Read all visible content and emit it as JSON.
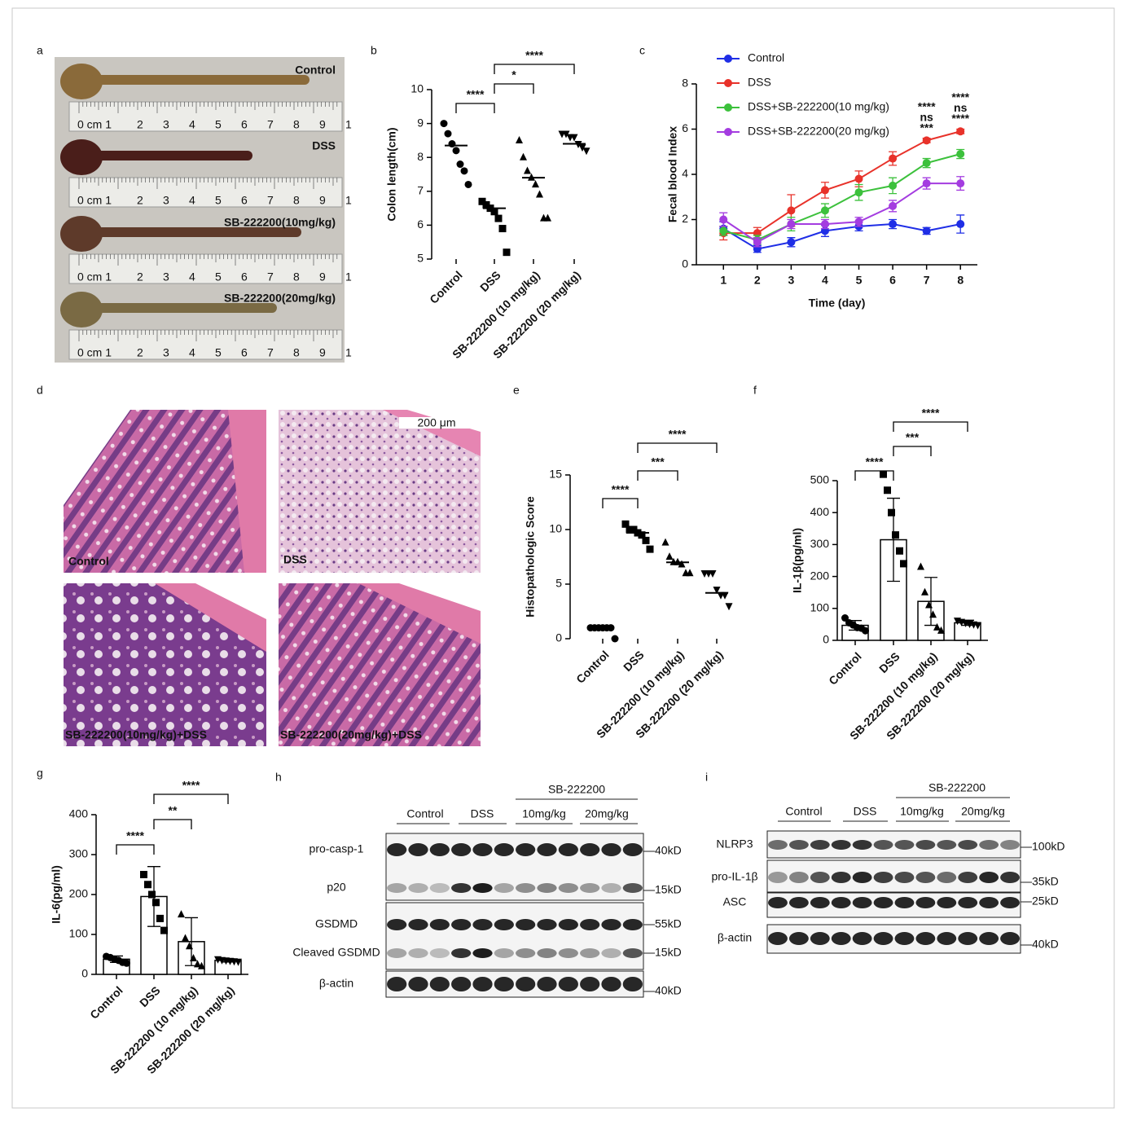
{
  "panel_labels": [
    "a",
    "b",
    "c",
    "d",
    "e",
    "f",
    "g",
    "h",
    "i"
  ],
  "photos_a": {
    "labels": [
      "Control",
      "DSS",
      "SB-222200(10mg/kg)",
      "SB-222200(20mg/kg)"
    ],
    "ruler_labels": [
      "0 cm 1",
      "2",
      "3",
      "4",
      "5",
      "6",
      "7",
      "8",
      "9",
      "1"
    ]
  },
  "histology_d": {
    "labels": [
      "Control",
      "DSS",
      "SB-222200(10mg/kg)+DSS",
      "SB-222200(20mg/kg)+DSS"
    ],
    "scale_bar": "200 μm"
  },
  "blot_h": {
    "header": "SB-222200",
    "groups": [
      "Control",
      "DSS",
      "10mg/kg",
      "20mg/kg"
    ],
    "rows": [
      "pro-casp-1",
      "p20",
      "GSDMD",
      "Cleaved GSDMD",
      "β-actin"
    ],
    "markers": [
      "40kD",
      "15kD",
      "55kD",
      "15kD",
      "40kD"
    ]
  },
  "blot_i": {
    "header": "SB-222200",
    "groups": [
      "Control",
      "DSS",
      "10mg/kg",
      "20mg/kg"
    ],
    "rows": [
      "NLRP3",
      "pro-IL-1β",
      "ASC",
      "β-actin"
    ],
    "markers": [
      "100kD",
      "35kD",
      "25kD",
      "40kD"
    ]
  },
  "chart_data": [
    {
      "type": "dotplot",
      "ylabel": "Colon length(cm)",
      "categories": [
        "Control",
        "DSS",
        "SB-222200 (10 mg/kg)",
        "SB-222200 (20 mg/kg)"
      ],
      "markers": [
        "circle",
        "square",
        "triangle",
        "triangle-down"
      ],
      "color": "#000000",
      "points": [
        [
          9.0,
          8.7,
          8.4,
          8.2,
          7.8,
          7.6,
          7.2
        ],
        [
          6.7,
          6.6,
          6.5,
          6.4,
          6.2,
          5.9,
          5.2
        ],
        [
          8.5,
          8.0,
          7.6,
          7.4,
          7.2,
          6.9,
          6.2,
          6.2
        ],
        [
          8.7,
          8.7,
          8.6,
          8.6,
          8.4,
          8.3,
          8.2
        ]
      ],
      "means": [
        8.35,
        6.5,
        7.4,
        8.4
      ],
      "ylim": [
        5,
        10
      ],
      "yticks": [
        5,
        6,
        7,
        8,
        9,
        10
      ],
      "comparisons": [
        {
          "between": [
            "Control",
            "DSS"
          ],
          "label": "****"
        },
        {
          "between": [
            "DSS",
            "SB-222200 (10 mg/kg)"
          ],
          "label": "*"
        },
        {
          "between": [
            "DSS",
            "SB-222200 (20 mg/kg)"
          ],
          "label": "****"
        }
      ]
    },
    {
      "type": "line",
      "xlabel": "Time (day)",
      "ylabel": "Fecal blood Index",
      "x": [
        1,
        2,
        3,
        4,
        5,
        6,
        7,
        8
      ],
      "xlim": [
        0.2,
        8.5
      ],
      "xticks": [
        1,
        2,
        3,
        4,
        5,
        6,
        7,
        8
      ],
      "ylim": [
        0,
        8
      ],
      "yticks": [
        0,
        2,
        4,
        6,
        8
      ],
      "series": [
        {
          "name": "Control",
          "color": "#1f2ee6",
          "values": [
            1.6,
            0.7,
            1.0,
            1.5,
            1.7,
            1.8,
            1.5,
            1.8
          ],
          "errors": [
            0.3,
            0.15,
            0.2,
            0.25,
            0.2,
            0.2,
            0.15,
            0.4
          ],
          "significance": [
            null,
            null,
            null,
            null,
            null,
            null,
            "****",
            "****"
          ]
        },
        {
          "name": "DSS",
          "color": "#e8322a",
          "values": [
            1.4,
            1.4,
            2.4,
            3.3,
            3.8,
            4.7,
            5.5,
            5.9
          ],
          "errors": [
            0.3,
            0.25,
            0.7,
            0.35,
            0.35,
            0.3,
            0.1,
            0.1
          ],
          "significance": [
            null,
            null,
            null,
            null,
            null,
            null,
            null,
            null
          ]
        },
        {
          "name": "DSS+SB-222200(10 mg/kg)",
          "color": "#3cc13c",
          "values": [
            1.5,
            1.1,
            1.8,
            2.4,
            3.2,
            3.5,
            4.5,
            4.9
          ],
          "errors": [
            0.2,
            0.2,
            0.3,
            0.3,
            0.35,
            0.35,
            0.2,
            0.2
          ],
          "significance": [
            null,
            null,
            null,
            null,
            null,
            null,
            "ns",
            "ns"
          ]
        },
        {
          "name": "DSS+SB-222200(20 mg/kg)",
          "color": "#a43ce0",
          "values": [
            2.0,
            1.0,
            1.8,
            1.8,
            1.9,
            2.6,
            3.6,
            3.6
          ],
          "errors": [
            0.3,
            0.2,
            0.2,
            0.2,
            0.2,
            0.25,
            0.25,
            0.3
          ],
          "significance": [
            null,
            null,
            null,
            null,
            null,
            null,
            "***",
            "****"
          ]
        }
      ]
    },
    {
      "type": "dotplot",
      "ylabel": "Histopathologic Score",
      "categories": [
        "Control",
        "DSS",
        "SB-222200 (10 mg/kg)",
        "SB-222200 (20 mg/kg)"
      ],
      "markers": [
        "circle",
        "square",
        "triangle",
        "triangle-down"
      ],
      "color": "#000000",
      "points": [
        [
          1,
          1,
          1,
          1,
          1,
          1,
          0
        ],
        [
          10.5,
          10,
          10,
          9.7,
          9.5,
          9,
          8.2
        ],
        [
          8.8,
          7.5,
          7,
          7,
          6.8,
          6,
          6
        ],
        [
          6,
          6,
          6,
          4.5,
          4,
          4,
          3
        ]
      ],
      "means": [
        1,
        9.7,
        7,
        4.2
      ],
      "ylim": [
        0,
        15
      ],
      "yticks": [
        0,
        5,
        10,
        15
      ],
      "comparisons": [
        {
          "between": [
            "Control",
            "DSS"
          ],
          "label": "****"
        },
        {
          "between": [
            "DSS",
            "SB-222200 (10 mg/kg)"
          ],
          "label": "***"
        },
        {
          "between": [
            "DSS",
            "SB-222200 (20 mg/kg)"
          ],
          "label": "****"
        }
      ]
    },
    {
      "type": "bar",
      "ylabel": "IL-1β(pg/ml)",
      "categories": [
        "Control",
        "DSS",
        "SB-222200 (10 mg/kg)",
        "SB-222200 (20 mg/kg)"
      ],
      "markers": [
        "circle",
        "square",
        "triangle",
        "triangle-down"
      ],
      "color": "#000000",
      "values": [
        47,
        315,
        122,
        55
      ],
      "errors": [
        15,
        130,
        75,
        8
      ],
      "points": [
        [
          70,
          55,
          48,
          40,
          38,
          30
        ],
        [
          520,
          470,
          400,
          330,
          280,
          240
        ],
        [
          230,
          150,
          110,
          80,
          40,
          30
        ],
        [
          62,
          58,
          55,
          52,
          50,
          48
        ]
      ],
      "ylim": [
        0,
        500
      ],
      "yticks": [
        0,
        100,
        200,
        300,
        400,
        500
      ],
      "comparisons": [
        {
          "between": [
            "Control",
            "DSS"
          ],
          "label": "****"
        },
        {
          "between": [
            "DSS",
            "SB-222200 (10 mg/kg)"
          ],
          "label": "***"
        },
        {
          "between": [
            "DSS",
            "SB-222200 (20 mg/kg)"
          ],
          "label": "****"
        }
      ]
    },
    {
      "type": "bar",
      "ylabel": "IL-6(pg/ml)",
      "categories": [
        "Control",
        "DSS",
        "SB-222200 (10 mg/kg)",
        "SB-222200 (20 mg/kg)"
      ],
      "markers": [
        "circle",
        "square",
        "triangle",
        "triangle-down"
      ],
      "color": "#000000",
      "values": [
        38,
        195,
        82,
        35
      ],
      "errors": [
        8,
        75,
        60,
        4
      ],
      "points": [
        [
          45,
          42,
          38,
          35,
          30,
          28
        ],
        [
          250,
          225,
          200,
          180,
          140,
          110
        ],
        [
          150,
          90,
          70,
          40,
          25,
          20
        ],
        [
          38,
          36,
          35,
          34,
          33,
          32
        ]
      ],
      "ylim": [
        0,
        400
      ],
      "yticks": [
        0,
        100,
        200,
        300,
        400
      ],
      "comparisons": [
        {
          "between": [
            "Control",
            "DSS"
          ],
          "label": "****"
        },
        {
          "between": [
            "DSS",
            "SB-222200 (10 mg/kg)"
          ],
          "label": "**"
        },
        {
          "between": [
            "DSS",
            "SB-222200 (20 mg/kg)"
          ],
          "label": "****"
        }
      ]
    }
  ]
}
